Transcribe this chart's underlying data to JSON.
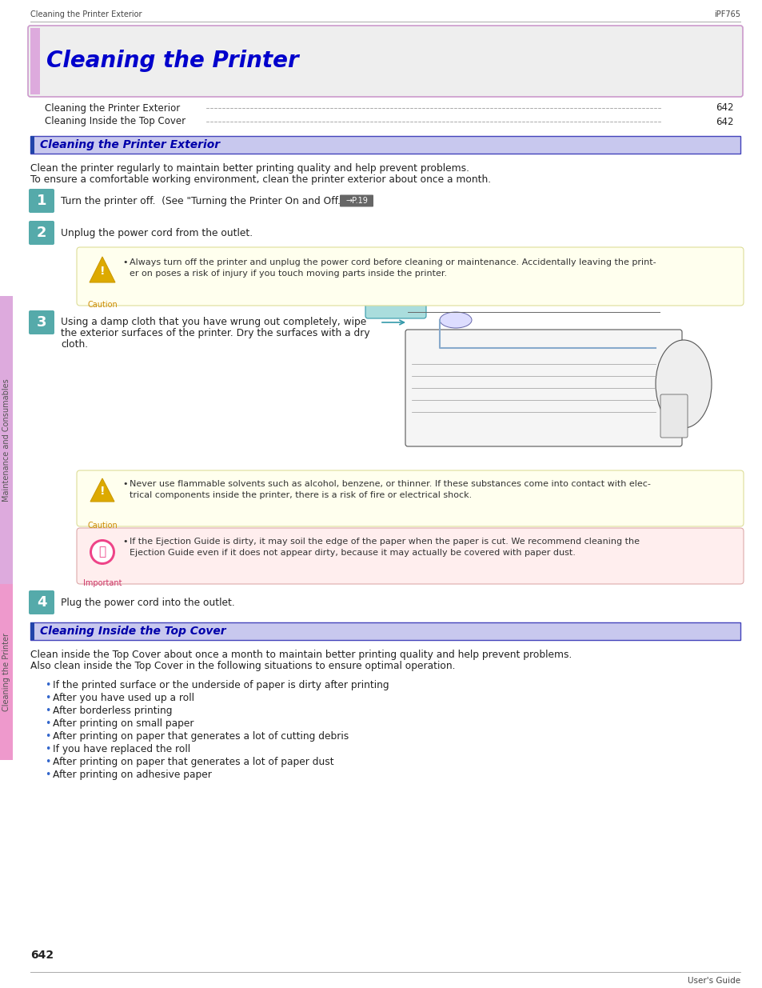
{
  "page_bg": "#ffffff",
  "header_left": "Cleaning the Printer Exterior",
  "header_right": "iPF765",
  "header_color": "#444444",
  "title_text": "Cleaning the Printer",
  "title_color": "#0000cc",
  "title_bg": "#eeeeee",
  "title_border": "#cc99cc",
  "title_accent": "#ddaadd",
  "toc": [
    {
      "text": "Cleaning the Printer Exterior",
      "page": "642"
    },
    {
      "text": "Cleaning Inside the Top Cover",
      "page": "642"
    }
  ],
  "sect_bg": "#c8c8e8",
  "sect_border": "#4444aa",
  "sect_accent": "#2244aa",
  "sect1_text": "Cleaning the Printer Exterior",
  "sect_text_color": "#0000aa",
  "intro1_line1": "Clean the printer regularly to maintain better printing quality and help prevent problems.",
  "intro1_line2": "To ensure a comfortable working environment, clean the printer exterior about once a month.",
  "step_bg": "#55aaaa",
  "step_text_color": "#ffffff",
  "step1_text": "Turn the printer off.  (See \"Turning the Printer On and Off.\")",
  "step1_link": "→P.19",
  "step2_text": "Unplug the power cord from the outlet.",
  "caution1_line1": "Always turn off the printer and unplug the power cord before cleaning or maintenance. Accidentally leaving the print-",
  "caution1_line2": "er on poses a risk of injury if you touch moving parts inside the printer.",
  "step3_line1": "Using a damp cloth that you have wrung out completely, wipe",
  "step3_line2": "the exterior surfaces of the printer. Dry the surfaces with a dry",
  "step3_line3": "cloth.",
  "caution2_line1": "Never use flammable solvents such as alcohol, benzene, or thinner. If these substances come into contact with elec-",
  "caution2_line2": "trical components inside the printer, there is a risk of fire or electrical shock.",
  "important_line1": "If the Ejection Guide is dirty, it may soil the edge of the paper when the paper is cut. We recommend cleaning the",
  "important_line2": "Ejection Guide even if it does not appear dirty, because it may actually be covered with paper dust.",
  "step4_text": "Plug the power cord into the outlet.",
  "sect2_text": "Cleaning Inside the Top Cover",
  "intro2_line1": "Clean inside the Top Cover about once a month to maintain better printing quality and help prevent problems.",
  "intro2_line2": "Also clean inside the Top Cover in the following situations to ensure optimal operation.",
  "bullets": [
    "If the printed surface or the underside of paper is dirty after printing",
    "After you have used up a roll",
    "After borderless printing",
    "After printing on small paper",
    "After printing on paper that generates a lot of cutting debris",
    "If you have replaced the roll",
    "After printing on paper that generates a lot of paper dust",
    "After printing on adhesive paper"
  ],
  "bullet_color": "#3366cc",
  "caution_bg": "#ffffee",
  "caution_border": "#e8e8aa",
  "caution_text_color": "#222222",
  "caution_label_color": "#cc8800",
  "important_bg": "#ffeeee",
  "important_border": "#eecccc",
  "important_label_color": "#cc3366",
  "body_color": "#222222",
  "sidebar1_text": "Maintenance and Consumables",
  "sidebar2_text": "Cleaning the Printer",
  "sidebar1_bg": "#ddaadd",
  "sidebar2_bg": "#dd99cc",
  "page_number": "642",
  "footer_text": "User's Guide"
}
